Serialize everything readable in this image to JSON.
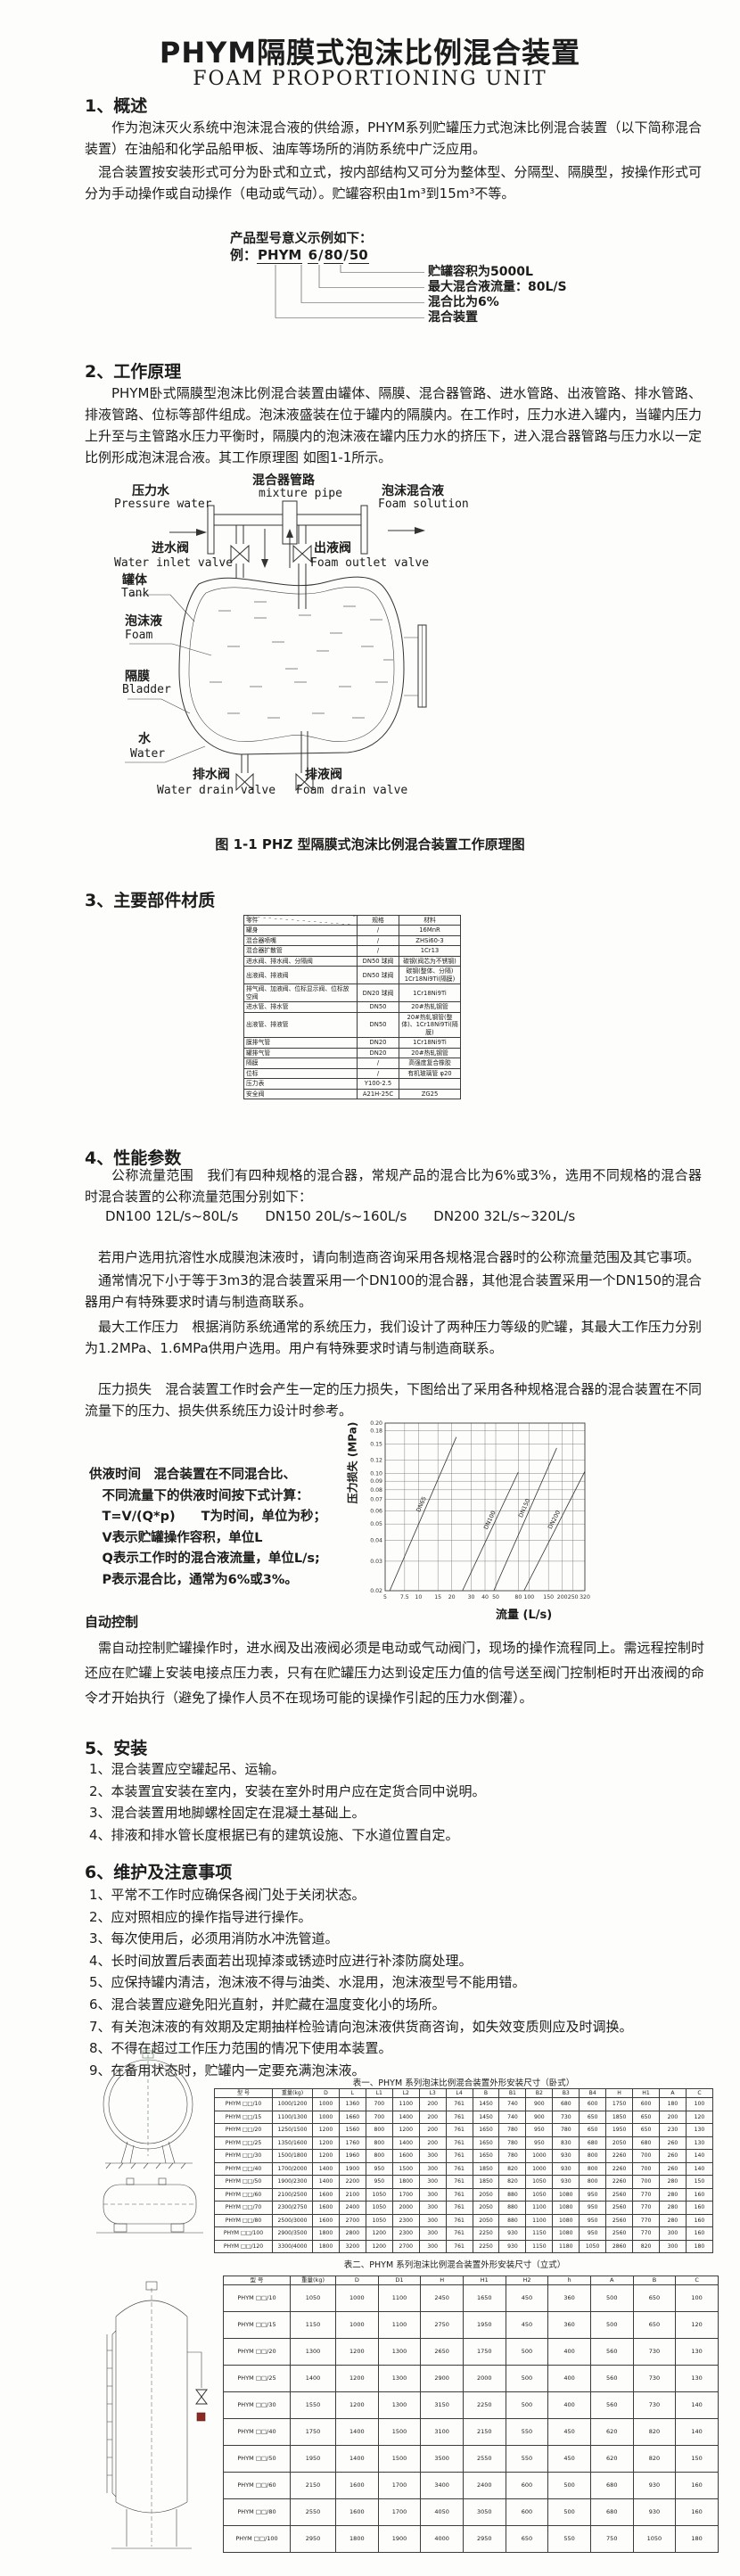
{
  "page": {
    "title": "PHYM隔膜式泡沫比例混合装置",
    "subtitle": "FOAM PROPORTIONING UNIT"
  },
  "section1": {
    "heading": "1、概述",
    "para1": "作为泡沫灭火系统中泡沫混合液的供给源，PHYM系列贮罐压力式泡沫比例混合装置（以下简称混合装置）在油船和化学品船甲板、油库等场所的消防系统中广泛应用。",
    "para2": "混合装置按安装形式可分为卧式和立式，按内部结构又可分为整体型、分隔型、隔膜型，按操作形式可分为手动操作或自动操作（电动或气动）。贮罐容积由1m³到15m³不等。",
    "model_example": {
      "intro": "产品型号意义示例如下：",
      "prefix": "例：",
      "code_m": "PHYM",
      "p1": "6",
      "p2": "80",
      "p3": "50",
      "sep": "/",
      "callouts": [
        "贮罐容积为5000L",
        "最大混合液流量：80L/S",
        "混合比为6%",
        "混合装置"
      ]
    }
  },
  "section2": {
    "heading": "2、工作原理",
    "para": "PHYM卧式隔膜型泡沫比例混合装置由罐体、隔膜、混合器管路、进水管路、出液管路、排水管路、排液管路、位标等部件组成。泡沫液盛装在位于罐内的隔膜内。在工作时，压力水进入罐内，当罐内压力上升至与主管路水压力平衡时，隔膜内的泡沫液在罐内压力水的挤压下，进入混合器管路与压力水以一定比例形成泡沫混合液。其工作原理图 如图1-1所示。",
    "diagram": {
      "pressure_water_cn": "压力水",
      "pressure_water_en": "Pressure water",
      "mixture_pipe_cn": "混合器管路",
      "mixture_pipe_en": "mixture pipe",
      "foam_solution_cn": "泡沫混合液",
      "foam_solution_en": "Foam solution",
      "water_inlet_cn": "进水阀",
      "water_inlet_en": "Water inlet valve",
      "foam_outlet_cn": "出液阀",
      "foam_outlet_en": "Foam outlet valve",
      "tank_cn": "罐体",
      "tank_en": "Tank",
      "foam_cn": "泡沫液",
      "foam_en": "Foam",
      "bladder_cn": "隔膜",
      "bladder_en": "Bladder",
      "water_cn": "水",
      "water_en": "Water",
      "water_drain_cn": "排水阀",
      "water_drain_en": "Water drain valve",
      "foam_drain_cn": "排液阀",
      "foam_drain_en": "Foam drain valve",
      "caption": "图 1-1 PHZ 型隔膜式泡沫比例混合装置工作原理图"
    }
  },
  "section3": {
    "heading": "3、主要部件材质",
    "materials_table": {
      "headers": [
        "零件",
        "规格",
        "材料"
      ],
      "rows": [
        [
          "罐身",
          "/",
          "16MnR"
        ],
        [
          "混合器喷嘴",
          "/",
          "ZHSi60-3"
        ],
        [
          "混合器扩散管",
          "/",
          "1Cr13"
        ],
        [
          "进水阀、排水阀、分隔阀",
          "DN50 球阀",
          "碳钢(阀芯为不锈钢)"
        ],
        [
          "出液阀、排液阀",
          "DN50 球阀",
          "碳钢(整体、分隔) 1Cr18Ni9Ti(隔膜)"
        ],
        [
          "排气阀、加液阀、位标显示阀、位标放空阀",
          "DN20 球阀",
          "1Cr18Ni9Ti"
        ],
        [
          "进水管、排水管",
          "DN50",
          "20#热轧钢管"
        ],
        [
          "出液管、排液管",
          "DN50",
          "20#热轧钢管(整体)、1Cr18Ni9Ti(隔膜)"
        ],
        [
          "膜排气管",
          "DN20",
          "1Cr18Ni9Ti"
        ],
        [
          "罐排气管",
          "DN20",
          "20#热轧钢管"
        ],
        [
          "隔膜",
          "/",
          "高强度复合橡胶"
        ],
        [
          "位标",
          "/",
          "有机玻璃管 φ20"
        ],
        [
          "压力表",
          "Y100-2.5",
          ""
        ],
        [
          "安全阀",
          "A21H-25C",
          "ZG25"
        ]
      ]
    }
  },
  "section4": {
    "heading": "4、性能参数",
    "para_flow": "公称流量范围　我们有四种规格的混合器，常规产品的混合比为6%或3%，选用不同规格的混合器时混合装置的公称流量范围分别如下：",
    "flow_line": "DN100  12L/s~80L/s　　DN150  20L/s~160L/s　　DN200  32L/s~320L/s",
    "para_afff": "若用户选用抗溶性水成膜泡沫液时，请向制造商咨询采用各规格混合器时的公称流量范围及其它事项。",
    "para_usual": "通常情况下小于等于3m3的混合装置采用一个DN100的混合器，其他混合装置采用一个DN150的混合器用户有特殊要求时请与制造商联系。",
    "para_pressure": "最大工作压力　根据消防系统通常的系统压力，我们设计了两种压力等级的贮罐，其最大工作压力分别为1.2MPa、1.6MPa供用户选用。用户有特殊要求时请与制造商联系。",
    "para_loss": "压力损失　混合装置工作时会产生一定的压力损失，下图给出了采用各种规格混合器的混合装置在不同流量下的压力、损失供系统压力设计时参考。",
    "supply_time_lines": [
      "供液时间　混合装置在不同混合比、",
      "　不同流量下的供液时间按下式计算：",
      "　T=V/(Q*p)　　T为时间，单位为秒；",
      "　V表示贮罐操作容积，单位L",
      "　Q表示工作时的混合液流量，单位L/s;",
      "　P表示混合比，通常为6%或3%。"
    ],
    "auto_heading": "自动控制",
    "auto_para": "需自动控制贮罐操作时，进水阀及出液阀必须是电动或气动阀门，现场的操作流程同上。需远程控制时还应在贮罐上安装电接点压力表，只有在贮罐压力达到设定压力值的信号送至阀门控制柜时开出液阀的命令才开始执行（避免了操作人员不在现场可能的误操作引起的压力水倒灌）。"
  },
  "chart_data": {
    "type": "line",
    "title": "",
    "xlabel": "流量 (L/s)",
    "ylabel": "压力损失 (MPa)",
    "x_scale": "log",
    "y_scale": "log",
    "xlim": [
      5,
      320
    ],
    "ylim": [
      0.02,
      0.2
    ],
    "grid": true,
    "legend_position": "on-line",
    "x_ticks": [
      "5",
      "7.5",
      "10",
      "15",
      "20",
      "30",
      "40",
      "50",
      "80",
      "100",
      "150",
      "200",
      "250",
      "320"
    ],
    "y_ticks": [
      "0.02",
      "0.03",
      "0.04",
      "0.05",
      "0.06",
      "0.07",
      "0.08",
      "0.09",
      "0.10",
      "0.12",
      "0.15",
      "0.18",
      "0.20"
    ],
    "series": [
      {
        "name": "DN65",
        "points": [
          [
            5.5,
            0.02
          ],
          [
            22,
            0.165
          ]
        ]
      },
      {
        "name": "DN100",
        "points": [
          [
            25,
            0.02
          ],
          [
            80,
            0.102
          ]
        ]
      },
      {
        "name": "DN150",
        "points": [
          [
            48,
            0.02
          ],
          [
            178,
            0.142
          ]
        ]
      },
      {
        "name": "DN200",
        "points": [
          [
            90,
            0.02
          ],
          [
            320,
            0.103
          ]
        ]
      }
    ]
  },
  "section5": {
    "heading": "5、安装",
    "items": [
      "1、混合装置应空罐起吊、运输。",
      "2、本装置宜安装在室内，安装在室外时用户应在定货合同中说明。",
      "3、混合装置用地脚螺栓固定在混凝土基础上。",
      "4、排液和排水管长度根据已有的建筑设施、下水道位置自定。"
    ]
  },
  "section6": {
    "heading": "6、维护及注意事项",
    "items": [
      "1、平常不工作时应确保各阀门处于关闭状态。",
      "2、应对照相应的操作指导进行操作。",
      "3、每次使用后，必须用消防水冲洗管道。",
      "4、长时间放置后表面若出现掉漆或锈迹时应进行补漆防腐处理。",
      "5、应保持罐内清洁，泡沫液不得与油类、水混用，泡沫液型号不能用错。",
      "6、混合装置应避免阳光直射，并贮藏在温度变化小的场所。",
      "7、有关泡沫液的有效期及定期抽样检验请向泡沫液供货商咨询，如失效变质则应及时调换。",
      "8、不得在超过工作压力范围的情况下使用本装置。",
      "9、在备用状态时，贮罐内一定要充满泡沫液。"
    ]
  },
  "table1": {
    "caption": "表一、PHYM 系列泡沫比例混合装置外形安装尺寸（卧式）",
    "headers": [
      "型  号",
      "重量(kg)",
      "D",
      "L",
      "L1",
      "L2",
      "L3",
      "L4",
      "B",
      "B1",
      "B2",
      "B3",
      "B4",
      "H",
      "H1",
      "A",
      "C"
    ],
    "rows": [
      [
        "PHYM □□/10",
        "1000/1200",
        "1000",
        "1360",
        "700",
        "1100",
        "200",
        "761",
        "1450",
        "740",
        "900",
        "680",
        "600",
        "1750",
        "600",
        "180",
        "100"
      ],
      [
        "PHYM □□/15",
        "1100/1300",
        "1000",
        "1660",
        "700",
        "1400",
        "200",
        "761",
        "1450",
        "740",
        "900",
        "730",
        "650",
        "1850",
        "650",
        "200",
        "120"
      ],
      [
        "PHYM □□/20",
        "1250/1500",
        "1200",
        "1560",
        "800",
        "1200",
        "200",
        "761",
        "1650",
        "780",
        "950",
        "780",
        "650",
        "1950",
        "650",
        "230",
        "130"
      ],
      [
        "PHYM □□/25",
        "1350/1600",
        "1200",
        "1760",
        "800",
        "1400",
        "200",
        "761",
        "1650",
        "780",
        "950",
        "830",
        "680",
        "2050",
        "680",
        "260",
        "130"
      ],
      [
        "PHYM □□/30",
        "1500/1800",
        "1200",
        "1960",
        "800",
        "1600",
        "300",
        "761",
        "1650",
        "780",
        "1000",
        "930",
        "800",
        "2260",
        "700",
        "260",
        "140"
      ],
      [
        "PHYM □□/40",
        "1700/2000",
        "1400",
        "1900",
        "950",
        "1500",
        "300",
        "761",
        "1850",
        "820",
        "1000",
        "930",
        "800",
        "2260",
        "700",
        "260",
        "140"
      ],
      [
        "PHYM □□/50",
        "1900/2300",
        "1400",
        "2200",
        "950",
        "1800",
        "300",
        "761",
        "1850",
        "820",
        "1050",
        "930",
        "800",
        "2260",
        "700",
        "280",
        "150"
      ],
      [
        "PHYM □□/60",
        "2100/2500",
        "1600",
        "2100",
        "1050",
        "1700",
        "300",
        "761",
        "2050",
        "880",
        "1050",
        "1080",
        "950",
        "2560",
        "770",
        "280",
        "160"
      ],
      [
        "PHYM □□/70",
        "2300/2750",
        "1600",
        "2400",
        "1050",
        "2000",
        "300",
        "761",
        "2050",
        "880",
        "1100",
        "1080",
        "950",
        "2560",
        "770",
        "280",
        "160"
      ],
      [
        "PHYM □□/80",
        "2500/3000",
        "1600",
        "2700",
        "1050",
        "2300",
        "300",
        "761",
        "2050",
        "880",
        "1100",
        "1080",
        "950",
        "2560",
        "770",
        "280",
        "160"
      ],
      [
        "PHYM □□/100",
        "2900/3500",
        "1800",
        "2800",
        "1200",
        "2300",
        "300",
        "761",
        "2250",
        "930",
        "1150",
        "1080",
        "950",
        "2560",
        "770",
        "300",
        "160"
      ],
      [
        "PHYM □□/120",
        "3300/4000",
        "1800",
        "3200",
        "1200",
        "2700",
        "300",
        "761",
        "2250",
        "930",
        "1150",
        "1180",
        "1050",
        "2860",
        "820",
        "300",
        "180"
      ]
    ]
  },
  "table2": {
    "caption": "表二、PHYM 系列泡沫比例混合装置外形安装尺寸（立式）",
    "headers": [
      "型  号",
      "重量(kg)",
      "D",
      "D1",
      "H",
      "H1",
      "H2",
      "h",
      "A",
      "B",
      "C"
    ],
    "rows": [
      [
        "PHYM □□/10",
        "1050",
        "1000",
        "1100",
        "2450",
        "1650",
        "450",
        "360",
        "500",
        "650",
        "100"
      ],
      [
        "PHYM □□/15",
        "1150",
        "1000",
        "1100",
        "2750",
        "1950",
        "450",
        "360",
        "500",
        "650",
        "120"
      ],
      [
        "PHYM □□/20",
        "1300",
        "1200",
        "1300",
        "2650",
        "1750",
        "500",
        "400",
        "560",
        "730",
        "130"
      ],
      [
        "PHYM □□/25",
        "1400",
        "1200",
        "1300",
        "2900",
        "2000",
        "500",
        "400",
        "560",
        "730",
        "130"
      ],
      [
        "PHYM □□/30",
        "1550",
        "1200",
        "1300",
        "3150",
        "2250",
        "500",
        "400",
        "560",
        "730",
        "140"
      ],
      [
        "PHYM □□/40",
        "1750",
        "1400",
        "1500",
        "3100",
        "2150",
        "550",
        "450",
        "620",
        "820",
        "140"
      ],
      [
        "PHYM □□/50",
        "1950",
        "1400",
        "1500",
        "3500",
        "2550",
        "550",
        "450",
        "620",
        "820",
        "150"
      ],
      [
        "PHYM □□/60",
        "2150",
        "1600",
        "1700",
        "3400",
        "2400",
        "600",
        "500",
        "680",
        "930",
        "160"
      ],
      [
        "PHYM □□/80",
        "2550",
        "1600",
        "1700",
        "4050",
        "3050",
        "600",
        "500",
        "680",
        "930",
        "160"
      ],
      [
        "PHYM □□/100",
        "2950",
        "1800",
        "1900",
        "4000",
        "2950",
        "650",
        "550",
        "750",
        "1050",
        "180"
      ]
    ]
  }
}
